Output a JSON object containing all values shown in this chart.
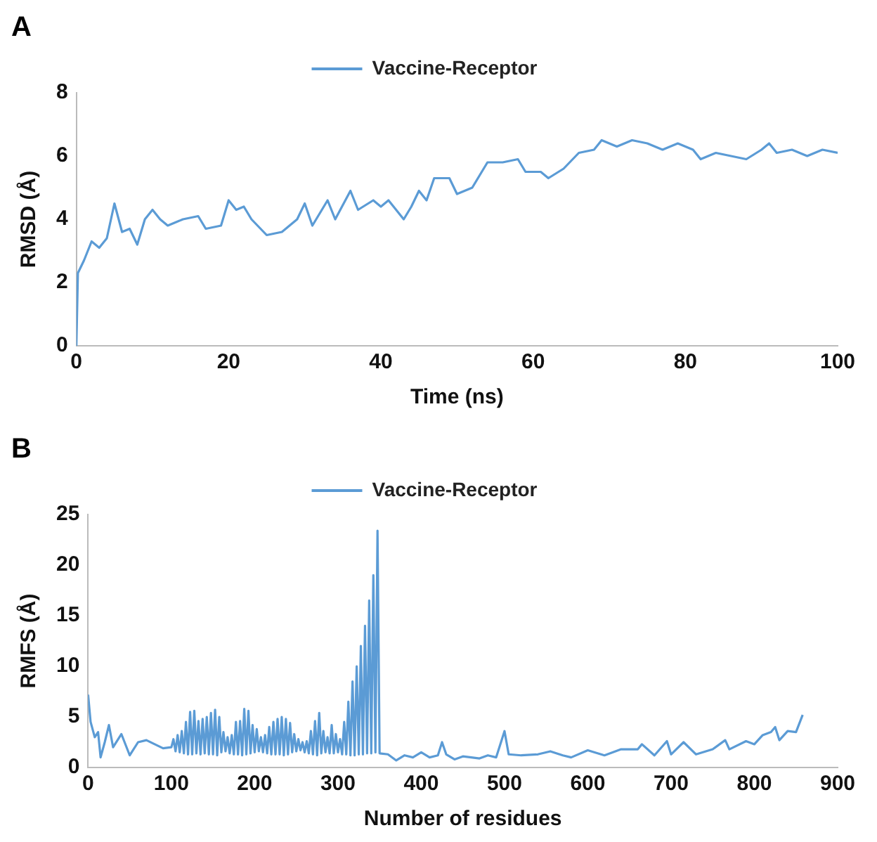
{
  "chart_data": [
    {
      "type": "line",
      "title": "A",
      "xlabel": "Time (ns)",
      "ylabel": "RMSD (Å)",
      "xlim": [
        0,
        100
      ],
      "xticks": [
        0,
        20,
        40,
        60,
        80,
        100
      ],
      "ylim": [
        0,
        8
      ],
      "yticks": [
        0,
        2,
        4,
        6,
        8
      ],
      "grid": false,
      "legend": "top",
      "marker": "none",
      "x": [
        0,
        0.2,
        1,
        2,
        3,
        4,
        5,
        6,
        7,
        8,
        9,
        10,
        11,
        12,
        14,
        16,
        17,
        19,
        20,
        21,
        22,
        23,
        25,
        27,
        29,
        30,
        31,
        33,
        34,
        36,
        37,
        39,
        40,
        41,
        43,
        44,
        45,
        46,
        47,
        49,
        50,
        52,
        53,
        54,
        56,
        58,
        59,
        61,
        62,
        64,
        66,
        68,
        69,
        71,
        73,
        75,
        77,
        79,
        81,
        82,
        84,
        86,
        88,
        90,
        91,
        92,
        94,
        96,
        98,
        100
      ],
      "series": [
        {
          "name": "Vaccine-Receptor",
          "color": "#5b9bd5",
          "values": [
            0,
            2.3,
            2.7,
            3.3,
            3.1,
            3.4,
            4.5,
            3.6,
            3.7,
            3.2,
            4.0,
            4.3,
            4.0,
            3.8,
            4.0,
            4.1,
            3.7,
            3.8,
            4.6,
            4.3,
            4.4,
            4.0,
            3.5,
            3.6,
            4.0,
            4.5,
            3.8,
            4.6,
            4.0,
            4.9,
            4.3,
            4.6,
            4.4,
            4.6,
            4.0,
            4.4,
            4.9,
            4.6,
            5.3,
            5.3,
            4.8,
            5.0,
            5.4,
            5.8,
            5.8,
            5.9,
            5.5,
            5.5,
            5.3,
            5.6,
            6.1,
            6.2,
            6.5,
            6.3,
            6.5,
            6.4,
            6.2,
            6.4,
            6.2,
            5.9,
            6.1,
            6.0,
            5.9,
            6.2,
            6.4,
            6.1,
            6.2,
            6.0,
            6.2,
            6.1
          ]
        }
      ]
    },
    {
      "type": "line",
      "title": "B",
      "xlabel": "Number of residues",
      "ylabel": "RMFS (Å)",
      "xlim": [
        0,
        900
      ],
      "xticks": [
        0,
        100,
        200,
        300,
        400,
        500,
        600,
        700,
        800,
        900
      ],
      "ylim": [
        0,
        25
      ],
      "yticks": [
        0,
        5,
        10,
        15,
        20,
        25
      ],
      "grid": false,
      "legend": "top",
      "marker": "none",
      "x": [
        0,
        3,
        8,
        12,
        15,
        20,
        25,
        30,
        40,
        50,
        60,
        70,
        80,
        90,
        100,
        102.5,
        105,
        107.5,
        110,
        112.5,
        115,
        117.5,
        120,
        122.5,
        125,
        127.5,
        130,
        132.5,
        135,
        137.5,
        140,
        142.5,
        145,
        147.5,
        150,
        152.5,
        155,
        157.5,
        160,
        162.5,
        165,
        167.5,
        170,
        172.5,
        175,
        177.5,
        180,
        182.5,
        185,
        187.5,
        190,
        192.5,
        195,
        197.5,
        200,
        202.5,
        205,
        207.5,
        210,
        212.5,
        215,
        217.5,
        220,
        222.5,
        225,
        227.5,
        230,
        232.5,
        235,
        237.5,
        240,
        242.5,
        245,
        247.5,
        250,
        252.5,
        255,
        257.5,
        260,
        262.5,
        265,
        267.5,
        270,
        272.5,
        275,
        277.5,
        280,
        282.5,
        285,
        287.5,
        290,
        292.5,
        295,
        297.5,
        300,
        302.5,
        305,
        307.5,
        310,
        312.5,
        315,
        317.5,
        320,
        322.5,
        325,
        327.5,
        330,
        332.5,
        335,
        337.5,
        340,
        342.5,
        345,
        347.5,
        350,
        360,
        370,
        380,
        390,
        400,
        410,
        420,
        425,
        430,
        440,
        450,
        470,
        480,
        490,
        500,
        505,
        520,
        540,
        555,
        570,
        580,
        600,
        620,
        640,
        660,
        665,
        680,
        695,
        700,
        715,
        730,
        750,
        765,
        770,
        790,
        800,
        810,
        820,
        825,
        830,
        840,
        850,
        858
      ],
      "series": [
        {
          "name": "Vaccine-Receptor",
          "color": "#5b9bd5",
          "values": [
            7.2,
            4.5,
            3.0,
            3.5,
            1.0,
            2.5,
            4.2,
            2.0,
            3.3,
            1.2,
            2.5,
            2.7,
            2.3,
            1.9,
            2.0,
            2.8,
            1.6,
            3.2,
            1.5,
            3.6,
            1.4,
            4.5,
            1.3,
            5.5,
            1.3,
            5.6,
            1.4,
            4.6,
            1.3,
            4.8,
            1.4,
            5.0,
            1.3,
            5.4,
            1.3,
            5.7,
            1.2,
            5.0,
            1.5,
            3.5,
            1.6,
            3.0,
            1.4,
            3.2,
            1.3,
            4.5,
            1.3,
            4.6,
            1.2,
            5.8,
            1.3,
            5.6,
            1.4,
            4.2,
            1.5,
            3.8,
            1.6,
            3.0,
            1.5,
            3.2,
            1.4,
            4.0,
            1.3,
            4.5,
            1.3,
            4.8,
            1.3,
            5.0,
            1.2,
            4.8,
            1.3,
            4.4,
            1.5,
            3.3,
            1.6,
            2.8,
            1.7,
            2.5,
            1.5,
            2.6,
            1.4,
            3.6,
            1.3,
            4.6,
            1.2,
            5.4,
            1.4,
            3.6,
            1.5,
            3.0,
            1.4,
            4.2,
            1.4,
            3.3,
            1.5,
            2.8,
            1.3,
            4.5,
            1.3,
            6.5,
            1.2,
            8.5,
            1.2,
            10.0,
            1.3,
            12.0,
            1.3,
            14.0,
            1.4,
            16.5,
            1.4,
            19.0,
            1.5,
            23.4,
            1.4,
            1.3,
            0.7,
            1.2,
            1.0,
            1.5,
            1.0,
            1.2,
            2.5,
            1.3,
            0.8,
            1.1,
            0.9,
            1.2,
            1.0,
            3.6,
            1.3,
            1.2,
            1.3,
            1.6,
            1.2,
            1.0,
            1.7,
            1.2,
            1.8,
            1.8,
            2.3,
            1.2,
            2.6,
            1.3,
            2.5,
            1.3,
            1.8,
            2.7,
            1.8,
            2.6,
            2.3,
            3.2,
            3.5,
            4.0,
            2.7,
            3.6,
            3.5,
            5.2
          ]
        }
      ]
    }
  ]
}
